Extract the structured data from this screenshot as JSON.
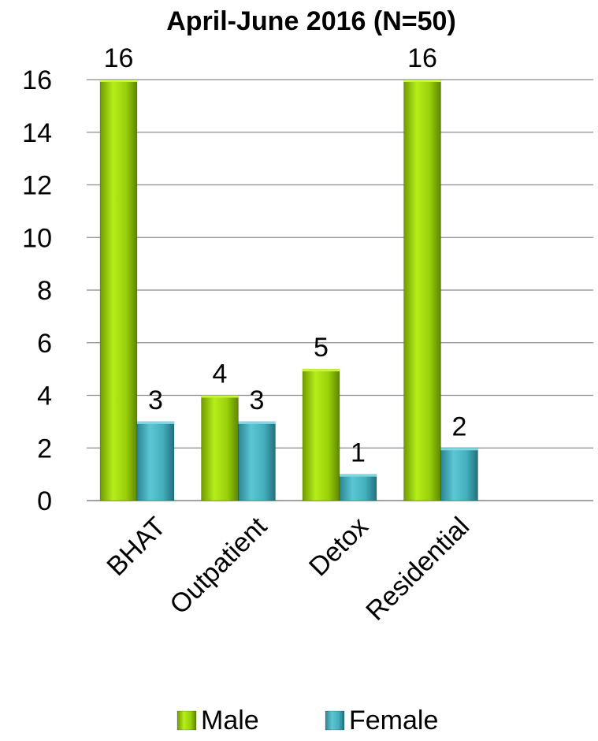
{
  "chart_data": {
    "type": "bar",
    "title": "April-June 2016 (N=50)",
    "xlabel": "",
    "ylabel": "",
    "categories": [
      "BHAT",
      "Outpatient",
      "Detox",
      "Residential"
    ],
    "series": [
      {
        "name": "Male",
        "values": [
          16,
          4,
          5,
          16
        ],
        "color": "#8fc400"
      },
      {
        "name": "Female",
        "values": [
          3,
          3,
          1,
          2
        ],
        "color": "#3aa6b5"
      }
    ],
    "ylim": [
      0,
      16
    ],
    "yticks": [
      0,
      2,
      4,
      6,
      8,
      10,
      12,
      14,
      16
    ],
    "grid": true,
    "legend": "bottom",
    "data_labels": true
  }
}
